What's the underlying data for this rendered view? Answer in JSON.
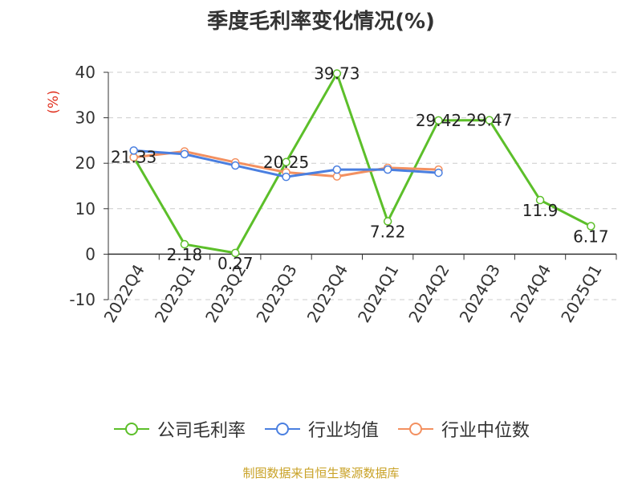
{
  "title": "季度毛利率变化情况(%)",
  "source": "制图数据来自恒生聚源数据库",
  "chart_data": {
    "type": "line",
    "ylabel": "(%)",
    "ylabel_color": "#e0301e",
    "ylim": [
      -10,
      40
    ],
    "yticks": [
      -10,
      0,
      10,
      20,
      30,
      40
    ],
    "grid": true,
    "legend_position": "bottom",
    "categories": [
      "2022Q4",
      "2023Q1",
      "2023Q2",
      "2023Q3",
      "2023Q4",
      "2024Q1",
      "2024Q2",
      "2024Q3",
      "2024Q4",
      "2025Q1"
    ],
    "series": [
      {
        "name": "公司毛利率",
        "color": "#5cbf2a",
        "values": [
          21.33,
          2.18,
          0.27,
          20.25,
          39.73,
          7.22,
          29.42,
          29.47,
          11.9,
          6.17
        ],
        "labels": [
          "21.33",
          "2.18",
          "0.27",
          "20.25",
          "39.73",
          "7.22",
          "29.42",
          "29.47",
          "11.9",
          "6.17"
        ]
      },
      {
        "name": "行业均值",
        "color": "#4a7fe0",
        "values": [
          22.8,
          22.0,
          19.5,
          17.0,
          18.6,
          18.6,
          17.9,
          null,
          null,
          null
        ]
      },
      {
        "name": "行业中位数",
        "color": "#f39060",
        "values": [
          21.3,
          22.6,
          20.2,
          18.0,
          17.1,
          19.0,
          18.6,
          null,
          null,
          null
        ]
      }
    ]
  }
}
